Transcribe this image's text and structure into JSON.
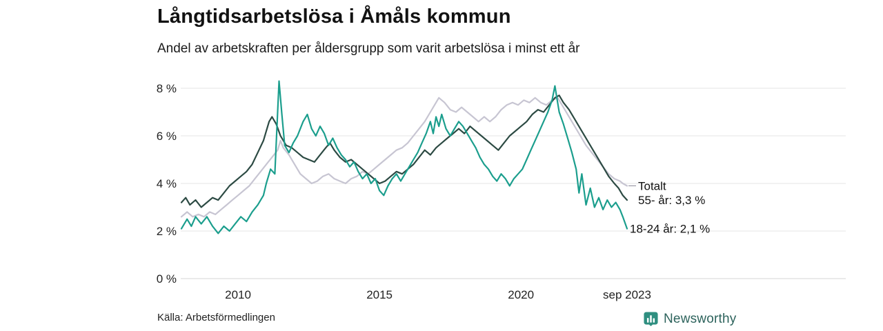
{
  "title": "Långtidsarbetslösa i Åmåls kommun",
  "subtitle": "Andel av arbetskraften per åldersgrupp som varit arbetslösa i minst ett år",
  "source": "Källa: Arbetsförmedlingen",
  "branding": {
    "name": "Newsworthy",
    "icon": "newsworthy-bar-chart-badge",
    "wordmark_color": "#2d635c",
    "icon_color": "#2f8f80"
  },
  "chart_data": {
    "type": "line",
    "title": "Långtidsarbetslösa i Åmåls kommun",
    "subtitle": "Andel av arbetskraften per åldersgrupp som varit arbetslösa i minst ett år",
    "unit": "% av arbetskraften",
    "grid": true,
    "legend_position": "right-end-labels",
    "x_range": [
      2008,
      2023.75
    ],
    "ylim": [
      0,
      8.5
    ],
    "y_ticks": [
      {
        "value": 0,
        "label": "0 %"
      },
      {
        "value": 2,
        "label": "2 %"
      },
      {
        "value": 4,
        "label": "4 %"
      },
      {
        "value": 6,
        "label": "6 %"
      },
      {
        "value": 8,
        "label": "8 %"
      }
    ],
    "x_ticks": [
      {
        "value": 2010,
        "label": "2010"
      },
      {
        "value": 2015,
        "label": "2015"
      },
      {
        "value": 2020,
        "label": "2020"
      },
      {
        "value": 2023.75,
        "label": "sep 2023"
      }
    ],
    "series": [
      {
        "name": "Totalt",
        "color": "#c7c5d2",
        "end_label": "Totalt",
        "end_value": 3.9,
        "leader": true,
        "points": [
          [
            2008.0,
            2.6
          ],
          [
            2008.2,
            2.8
          ],
          [
            2008.4,
            2.6
          ],
          [
            2008.6,
            2.7
          ],
          [
            2008.8,
            2.6
          ],
          [
            2009.0,
            2.8
          ],
          [
            2009.2,
            2.7
          ],
          [
            2009.4,
            2.9
          ],
          [
            2009.6,
            3.1
          ],
          [
            2009.8,
            3.3
          ],
          [
            2010.0,
            3.5
          ],
          [
            2010.2,
            3.7
          ],
          [
            2010.4,
            3.9
          ],
          [
            2010.6,
            4.2
          ],
          [
            2010.8,
            4.5
          ],
          [
            2011.0,
            4.8
          ],
          [
            2011.2,
            5.1
          ],
          [
            2011.4,
            5.4
          ],
          [
            2011.5,
            5.8
          ],
          [
            2011.6,
            5.5
          ],
          [
            2011.8,
            5.2
          ],
          [
            2012.0,
            4.8
          ],
          [
            2012.2,
            4.4
          ],
          [
            2012.4,
            4.2
          ],
          [
            2012.6,
            4.0
          ],
          [
            2012.8,
            4.1
          ],
          [
            2013.0,
            4.3
          ],
          [
            2013.2,
            4.4
          ],
          [
            2013.4,
            4.2
          ],
          [
            2013.6,
            4.1
          ],
          [
            2013.8,
            4.0
          ],
          [
            2014.0,
            4.2
          ],
          [
            2014.2,
            4.3
          ],
          [
            2014.4,
            4.5
          ],
          [
            2014.6,
            4.4
          ],
          [
            2014.8,
            4.6
          ],
          [
            2015.0,
            4.8
          ],
          [
            2015.2,
            5.0
          ],
          [
            2015.4,
            5.2
          ],
          [
            2015.6,
            5.4
          ],
          [
            2015.8,
            5.5
          ],
          [
            2016.0,
            5.7
          ],
          [
            2016.2,
            6.0
          ],
          [
            2016.4,
            6.3
          ],
          [
            2016.6,
            6.6
          ],
          [
            2016.8,
            7.0
          ],
          [
            2017.0,
            7.4
          ],
          [
            2017.1,
            7.6
          ],
          [
            2017.3,
            7.4
          ],
          [
            2017.5,
            7.1
          ],
          [
            2017.7,
            7.0
          ],
          [
            2017.9,
            7.2
          ],
          [
            2018.1,
            7.0
          ],
          [
            2018.3,
            6.8
          ],
          [
            2018.5,
            6.6
          ],
          [
            2018.7,
            6.8
          ],
          [
            2018.9,
            6.6
          ],
          [
            2019.1,
            6.8
          ],
          [
            2019.3,
            7.1
          ],
          [
            2019.5,
            7.3
          ],
          [
            2019.7,
            7.4
          ],
          [
            2019.9,
            7.3
          ],
          [
            2020.1,
            7.5
          ],
          [
            2020.3,
            7.4
          ],
          [
            2020.5,
            7.6
          ],
          [
            2020.7,
            7.4
          ],
          [
            2020.9,
            7.3
          ],
          [
            2021.1,
            7.5
          ],
          [
            2021.3,
            7.6
          ],
          [
            2021.5,
            7.2
          ],
          [
            2021.7,
            6.8
          ],
          [
            2021.9,
            6.4
          ],
          [
            2022.1,
            6.0
          ],
          [
            2022.3,
            5.6
          ],
          [
            2022.5,
            5.3
          ],
          [
            2022.7,
            5.0
          ],
          [
            2022.9,
            4.7
          ],
          [
            2023.1,
            4.4
          ],
          [
            2023.3,
            4.2
          ],
          [
            2023.5,
            4.1
          ],
          [
            2023.6,
            4.0
          ],
          [
            2023.75,
            3.9
          ]
        ]
      },
      {
        "name": "55- år",
        "color": "#2c4a43",
        "end_label": "55- år: 3,3 %",
        "end_value": 3.3,
        "leader": false,
        "points": [
          [
            2008.0,
            3.2
          ],
          [
            2008.15,
            3.4
          ],
          [
            2008.3,
            3.1
          ],
          [
            2008.5,
            3.3
          ],
          [
            2008.7,
            3.0
          ],
          [
            2008.9,
            3.2
          ],
          [
            2009.1,
            3.4
          ],
          [
            2009.3,
            3.3
          ],
          [
            2009.5,
            3.6
          ],
          [
            2009.7,
            3.9
          ],
          [
            2009.9,
            4.1
          ],
          [
            2010.1,
            4.3
          ],
          [
            2010.3,
            4.5
          ],
          [
            2010.5,
            4.8
          ],
          [
            2010.7,
            5.3
          ],
          [
            2010.9,
            5.8
          ],
          [
            2011.0,
            6.2
          ],
          [
            2011.1,
            6.6
          ],
          [
            2011.2,
            6.8
          ],
          [
            2011.35,
            6.5
          ],
          [
            2011.5,
            6.0
          ],
          [
            2011.7,
            5.6
          ],
          [
            2011.9,
            5.5
          ],
          [
            2012.1,
            5.3
          ],
          [
            2012.3,
            5.1
          ],
          [
            2012.5,
            5.0
          ],
          [
            2012.7,
            4.9
          ],
          [
            2012.9,
            5.2
          ],
          [
            2013.1,
            5.5
          ],
          [
            2013.25,
            5.7
          ],
          [
            2013.4,
            5.4
          ],
          [
            2013.6,
            5.1
          ],
          [
            2013.8,
            4.9
          ],
          [
            2014.0,
            5.0
          ],
          [
            2014.2,
            4.8
          ],
          [
            2014.4,
            4.6
          ],
          [
            2014.6,
            4.4
          ],
          [
            2014.8,
            4.2
          ],
          [
            2015.0,
            4.0
          ],
          [
            2015.2,
            4.1
          ],
          [
            2015.4,
            4.3
          ],
          [
            2015.6,
            4.5
          ],
          [
            2015.8,
            4.4
          ],
          [
            2016.0,
            4.6
          ],
          [
            2016.2,
            4.8
          ],
          [
            2016.4,
            5.1
          ],
          [
            2016.6,
            5.4
          ],
          [
            2016.8,
            5.2
          ],
          [
            2017.0,
            5.5
          ],
          [
            2017.2,
            5.7
          ],
          [
            2017.4,
            5.9
          ],
          [
            2017.6,
            6.1
          ],
          [
            2017.8,
            6.3
          ],
          [
            2018.0,
            6.1
          ],
          [
            2018.2,
            6.4
          ],
          [
            2018.4,
            6.2
          ],
          [
            2018.6,
            6.0
          ],
          [
            2018.8,
            5.8
          ],
          [
            2019.0,
            5.6
          ],
          [
            2019.2,
            5.4
          ],
          [
            2019.4,
            5.7
          ],
          [
            2019.6,
            6.0
          ],
          [
            2019.8,
            6.2
          ],
          [
            2020.0,
            6.4
          ],
          [
            2020.2,
            6.6
          ],
          [
            2020.4,
            6.9
          ],
          [
            2020.6,
            7.1
          ],
          [
            2020.8,
            7.0
          ],
          [
            2021.0,
            7.3
          ],
          [
            2021.2,
            7.6
          ],
          [
            2021.35,
            7.7
          ],
          [
            2021.5,
            7.4
          ],
          [
            2021.7,
            7.1
          ],
          [
            2021.9,
            6.7
          ],
          [
            2022.1,
            6.3
          ],
          [
            2022.3,
            5.9
          ],
          [
            2022.5,
            5.5
          ],
          [
            2022.7,
            5.1
          ],
          [
            2022.9,
            4.7
          ],
          [
            2023.1,
            4.3
          ],
          [
            2023.3,
            4.0
          ],
          [
            2023.45,
            3.8
          ],
          [
            2023.6,
            3.5
          ],
          [
            2023.75,
            3.3
          ]
        ]
      },
      {
        "name": "18-24 år",
        "color": "#1b9e8d",
        "end_label": "18-24 år: 2,1 %",
        "end_value": 2.1,
        "leader": false,
        "points": [
          [
            2008.0,
            2.1
          ],
          [
            2008.2,
            2.5
          ],
          [
            2008.35,
            2.2
          ],
          [
            2008.5,
            2.6
          ],
          [
            2008.7,
            2.3
          ],
          [
            2008.9,
            2.6
          ],
          [
            2009.1,
            2.2
          ],
          [
            2009.3,
            1.9
          ],
          [
            2009.5,
            2.2
          ],
          [
            2009.7,
            2.0
          ],
          [
            2009.9,
            2.3
          ],
          [
            2010.1,
            2.6
          ],
          [
            2010.3,
            2.4
          ],
          [
            2010.5,
            2.8
          ],
          [
            2010.7,
            3.1
          ],
          [
            2010.9,
            3.5
          ],
          [
            2011.0,
            4.0
          ],
          [
            2011.15,
            4.6
          ],
          [
            2011.3,
            4.4
          ],
          [
            2011.45,
            8.3
          ],
          [
            2011.55,
            6.9
          ],
          [
            2011.65,
            5.6
          ],
          [
            2011.8,
            5.3
          ],
          [
            2011.95,
            5.7
          ],
          [
            2012.1,
            6.0
          ],
          [
            2012.3,
            6.6
          ],
          [
            2012.45,
            6.9
          ],
          [
            2012.6,
            6.3
          ],
          [
            2012.75,
            6.0
          ],
          [
            2012.9,
            6.4
          ],
          [
            2013.05,
            6.1
          ],
          [
            2013.2,
            5.6
          ],
          [
            2013.35,
            5.9
          ],
          [
            2013.5,
            5.5
          ],
          [
            2013.65,
            5.2
          ],
          [
            2013.8,
            5.0
          ],
          [
            2013.95,
            4.7
          ],
          [
            2014.1,
            4.9
          ],
          [
            2014.25,
            4.5
          ],
          [
            2014.4,
            4.2
          ],
          [
            2014.55,
            4.4
          ],
          [
            2014.7,
            4.0
          ],
          [
            2014.85,
            4.2
          ],
          [
            2015.0,
            3.7
          ],
          [
            2015.15,
            3.5
          ],
          [
            2015.3,
            3.9
          ],
          [
            2015.45,
            4.2
          ],
          [
            2015.6,
            4.4
          ],
          [
            2015.75,
            4.1
          ],
          [
            2015.9,
            4.4
          ],
          [
            2016.05,
            4.7
          ],
          [
            2016.2,
            5.0
          ],
          [
            2016.35,
            5.3
          ],
          [
            2016.5,
            5.7
          ],
          [
            2016.65,
            6.1
          ],
          [
            2016.8,
            6.6
          ],
          [
            2016.9,
            6.1
          ],
          [
            2017.0,
            6.8
          ],
          [
            2017.1,
            6.4
          ],
          [
            2017.2,
            6.9
          ],
          [
            2017.35,
            6.3
          ],
          [
            2017.5,
            6.0
          ],
          [
            2017.65,
            6.3
          ],
          [
            2017.8,
            6.6
          ],
          [
            2017.95,
            6.4
          ],
          [
            2018.1,
            6.1
          ],
          [
            2018.25,
            5.8
          ],
          [
            2018.4,
            5.5
          ],
          [
            2018.55,
            5.1
          ],
          [
            2018.7,
            4.8
          ],
          [
            2018.85,
            4.6
          ],
          [
            2019.0,
            4.3
          ],
          [
            2019.15,
            4.1
          ],
          [
            2019.3,
            4.4
          ],
          [
            2019.45,
            4.2
          ],
          [
            2019.6,
            3.9
          ],
          [
            2019.75,
            4.2
          ],
          [
            2019.9,
            4.4
          ],
          [
            2020.05,
            4.6
          ],
          [
            2020.2,
            5.0
          ],
          [
            2020.35,
            5.4
          ],
          [
            2020.5,
            5.8
          ],
          [
            2020.65,
            6.2
          ],
          [
            2020.8,
            6.6
          ],
          [
            2020.95,
            7.0
          ],
          [
            2021.1,
            7.5
          ],
          [
            2021.2,
            8.1
          ],
          [
            2021.35,
            7.0
          ],
          [
            2021.5,
            6.5
          ],
          [
            2021.65,
            5.9
          ],
          [
            2021.8,
            5.3
          ],
          [
            2021.95,
            4.6
          ],
          [
            2022.05,
            3.6
          ],
          [
            2022.15,
            4.4
          ],
          [
            2022.3,
            3.1
          ],
          [
            2022.45,
            3.8
          ],
          [
            2022.6,
            3.0
          ],
          [
            2022.75,
            3.4
          ],
          [
            2022.9,
            2.9
          ],
          [
            2023.05,
            3.3
          ],
          [
            2023.2,
            3.0
          ],
          [
            2023.35,
            3.2
          ],
          [
            2023.5,
            2.9
          ],
          [
            2023.6,
            2.6
          ],
          [
            2023.75,
            2.1
          ]
        ]
      }
    ]
  }
}
